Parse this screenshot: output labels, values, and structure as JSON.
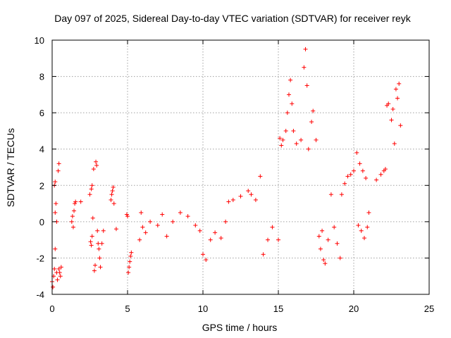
{
  "chart_data": {
    "type": "scatter",
    "title": "Day 097 of 2025, Sidereal Day-to-day VTEC variation (SDTVAR) for receiver reyk",
    "xlabel": "GPS time / hours",
    "ylabel": "SDTVAR / TECUs",
    "xlim": [
      0,
      25
    ],
    "ylim": [
      -4,
      10
    ],
    "xticks": [
      "0",
      "5",
      "10",
      "15",
      "20",
      "25"
    ],
    "yticks": [
      "-4",
      "-2",
      "0",
      "2",
      "4",
      "6",
      "8",
      "10"
    ],
    "grid": true,
    "marker": "+",
    "color": "#ff0000",
    "series": [
      {
        "name": "SDTVAR",
        "points": [
          [
            0.0,
            -3.3
          ],
          [
            0.05,
            -3.6
          ],
          [
            0.1,
            -3.0
          ],
          [
            0.15,
            -2.6
          ],
          [
            0.2,
            -1.5
          ],
          [
            0.2,
            0.5
          ],
          [
            0.15,
            2.0
          ],
          [
            0.2,
            2.2
          ],
          [
            0.25,
            1.0
          ],
          [
            0.3,
            0.0
          ],
          [
            0.3,
            -2.8
          ],
          [
            0.35,
            -3.2
          ],
          [
            0.4,
            2.8
          ],
          [
            0.45,
            3.2
          ],
          [
            0.45,
            -2.6
          ],
          [
            0.5,
            -2.8
          ],
          [
            0.55,
            -3.0
          ],
          [
            0.6,
            -2.5
          ],
          [
            1.3,
            0.0
          ],
          [
            1.35,
            0.3
          ],
          [
            1.4,
            -0.3
          ],
          [
            1.45,
            0.6
          ],
          [
            1.5,
            1.0
          ],
          [
            1.55,
            1.1
          ],
          [
            1.9,
            1.1
          ],
          [
            2.5,
            1.5
          ],
          [
            2.55,
            -1.1
          ],
          [
            2.6,
            -1.3
          ],
          [
            2.6,
            1.8
          ],
          [
            2.65,
            2.0
          ],
          [
            2.65,
            -0.8
          ],
          [
            2.7,
            0.2
          ],
          [
            2.75,
            2.9
          ],
          [
            2.8,
            -2.7
          ],
          [
            2.85,
            -2.4
          ],
          [
            2.9,
            3.3
          ],
          [
            2.95,
            3.1
          ],
          [
            3.0,
            -0.5
          ],
          [
            3.05,
            -1.2
          ],
          [
            3.1,
            -1.5
          ],
          [
            3.15,
            -2.0
          ],
          [
            3.2,
            -2.5
          ],
          [
            3.3,
            -1.2
          ],
          [
            3.4,
            -0.5
          ],
          [
            3.9,
            1.2
          ],
          [
            3.95,
            1.5
          ],
          [
            4.0,
            1.7
          ],
          [
            4.05,
            1.9
          ],
          [
            4.1,
            1.0
          ],
          [
            4.25,
            -0.4
          ],
          [
            4.95,
            0.4
          ],
          [
            5.0,
            0.3
          ],
          [
            5.05,
            -2.8
          ],
          [
            5.1,
            -2.5
          ],
          [
            5.15,
            -2.2
          ],
          [
            5.2,
            -1.9
          ],
          [
            5.25,
            -1.7
          ],
          [
            5.8,
            -1.0
          ],
          [
            5.9,
            0.5
          ],
          [
            6.0,
            -0.3
          ],
          [
            6.2,
            -0.6
          ],
          [
            6.5,
            0.0
          ],
          [
            7.0,
            -0.2
          ],
          [
            7.3,
            0.4
          ],
          [
            7.6,
            -0.8
          ],
          [
            8.0,
            0.0
          ],
          [
            8.5,
            0.5
          ],
          [
            9.0,
            0.3
          ],
          [
            9.5,
            -0.2
          ],
          [
            9.8,
            -0.5
          ],
          [
            10.0,
            -1.8
          ],
          [
            10.2,
            -2.1
          ],
          [
            10.5,
            -1.0
          ],
          [
            10.8,
            -0.6
          ],
          [
            11.2,
            -0.9
          ],
          [
            11.5,
            0.0
          ],
          [
            11.7,
            1.1
          ],
          [
            12.0,
            1.2
          ],
          [
            12.5,
            1.4
          ],
          [
            13.0,
            1.7
          ],
          [
            13.2,
            1.5
          ],
          [
            13.5,
            1.2
          ],
          [
            13.8,
            2.5
          ],
          [
            14.0,
            -1.8
          ],
          [
            14.3,
            -1.0
          ],
          [
            14.6,
            -0.3
          ],
          [
            15.0,
            -1.0
          ],
          [
            15.1,
            4.6
          ],
          [
            15.2,
            4.2
          ],
          [
            15.3,
            4.5
          ],
          [
            15.5,
            5.0
          ],
          [
            15.6,
            6.0
          ],
          [
            15.7,
            7.0
          ],
          [
            15.8,
            7.8
          ],
          [
            15.9,
            6.5
          ],
          [
            16.0,
            5.0
          ],
          [
            16.2,
            4.3
          ],
          [
            16.5,
            4.5
          ],
          [
            16.7,
            8.5
          ],
          [
            16.8,
            9.5
          ],
          [
            16.9,
            7.5
          ],
          [
            17.0,
            4.0
          ],
          [
            17.2,
            5.5
          ],
          [
            17.3,
            6.1
          ],
          [
            17.5,
            4.5
          ],
          [
            17.7,
            -0.8
          ],
          [
            17.8,
            -1.5
          ],
          [
            17.9,
            -0.5
          ],
          [
            18.0,
            -2.1
          ],
          [
            18.1,
            -2.3
          ],
          [
            18.3,
            -1.0
          ],
          [
            18.5,
            1.5
          ],
          [
            18.7,
            -0.3
          ],
          [
            18.9,
            -1.2
          ],
          [
            19.1,
            -2.0
          ],
          [
            19.2,
            1.5
          ],
          [
            19.4,
            2.1
          ],
          [
            19.6,
            2.5
          ],
          [
            19.8,
            2.6
          ],
          [
            20.0,
            2.8
          ],
          [
            20.2,
            3.8
          ],
          [
            20.4,
            3.2
          ],
          [
            20.6,
            2.8
          ],
          [
            20.8,
            2.4
          ],
          [
            20.3,
            -0.2
          ],
          [
            20.5,
            -0.5
          ],
          [
            20.7,
            -0.9
          ],
          [
            20.9,
            -0.3
          ],
          [
            21.0,
            0.5
          ],
          [
            21.5,
            2.3
          ],
          [
            21.8,
            2.6
          ],
          [
            22.0,
            2.8
          ],
          [
            22.1,
            2.9
          ],
          [
            22.2,
            6.4
          ],
          [
            22.3,
            6.5
          ],
          [
            22.5,
            5.6
          ],
          [
            22.6,
            6.2
          ],
          [
            22.7,
            4.3
          ],
          [
            22.8,
            7.3
          ],
          [
            22.9,
            6.8
          ],
          [
            23.0,
            7.6
          ],
          [
            23.1,
            5.3
          ]
        ]
      }
    ]
  }
}
